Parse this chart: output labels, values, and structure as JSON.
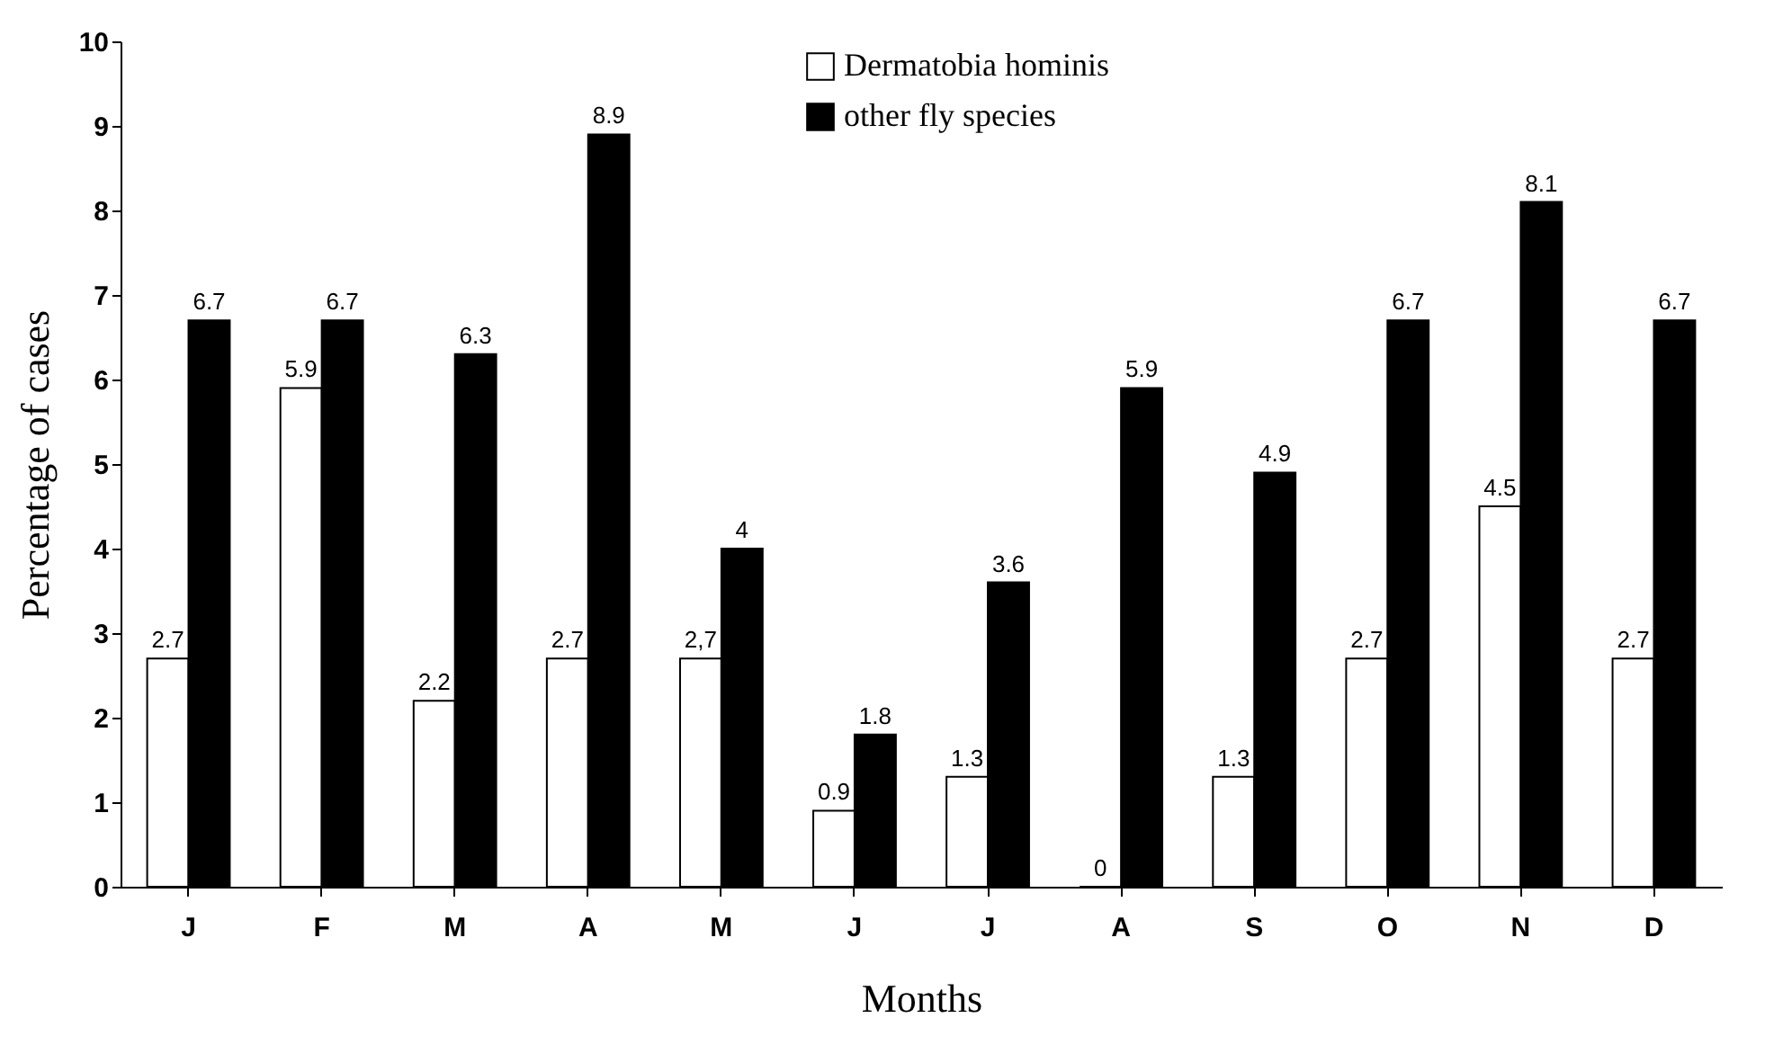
{
  "chart_data": {
    "type": "bar",
    "xlabel": "Months",
    "ylabel": "Percentage of cases",
    "categories": [
      "J",
      "F",
      "M",
      "A",
      "M",
      "J",
      "J",
      "A",
      "S",
      "O",
      "N",
      "D"
    ],
    "series": [
      {
        "name": "Dermatobia hominis",
        "color": "#ffffff",
        "values": [
          2.7,
          5.9,
          2.2,
          2.7,
          2.7,
          0.9,
          1.3,
          0,
          1.3,
          2.7,
          4.5,
          2.7
        ],
        "value_labels": [
          "2.7",
          "5.9",
          "2.2",
          "2.7",
          "2,7",
          "0.9",
          "1.3",
          "0",
          "1.3",
          "2.7",
          "4.5",
          "2.7"
        ]
      },
      {
        "name": "other fly species",
        "color": "#000000",
        "values": [
          6.7,
          6.7,
          6.3,
          8.9,
          4,
          1.8,
          3.6,
          5.9,
          4.9,
          6.7,
          8.1,
          6.7
        ],
        "value_labels": [
          "6.7",
          "6.7",
          "6.3",
          "8.9",
          "4",
          "1.8",
          "3.6",
          "5.9",
          "4.9",
          "6.7",
          "8.1",
          "6.7"
        ]
      }
    ],
    "ylim": [
      0,
      10
    ],
    "yticks": [
      0,
      1,
      2,
      3,
      4,
      5,
      6,
      7,
      8,
      9,
      10
    ],
    "grid": false,
    "legend": "top"
  }
}
